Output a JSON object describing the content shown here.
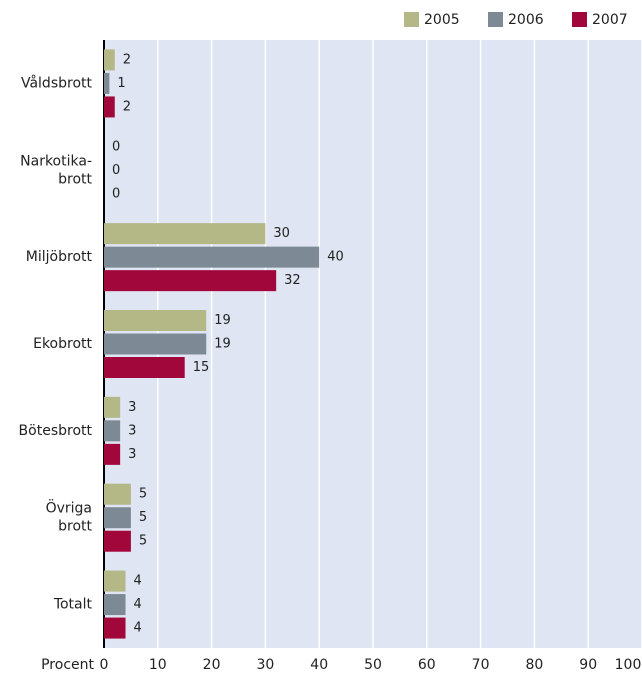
{
  "chart_data": {
    "type": "hbar",
    "categories": [
      "Våldsbrott",
      "Narkotika-\nbrott",
      "Miljöbrott",
      "Ekobrott",
      "Bötesbrott",
      "Övriga\nbrott",
      "Totalt"
    ],
    "series": [
      {
        "name": "2005",
        "color": "#b3b886",
        "values": [
          2,
          0,
          30,
          19,
          3,
          5,
          4
        ]
      },
      {
        "name": "2006",
        "color": "#7d8a95",
        "values": [
          1,
          0,
          40,
          19,
          3,
          5,
          4
        ]
      },
      {
        "name": "2007",
        "color": "#a2073b",
        "values": [
          2,
          0,
          32,
          15,
          3,
          5,
          4
        ]
      }
    ],
    "xlabel": "Procent",
    "xlim": [
      0,
      100
    ],
    "xticks": [
      0,
      10,
      20,
      30,
      40,
      50,
      60,
      70,
      80,
      90,
      100
    ],
    "grid": true,
    "legend": "top-right"
  }
}
